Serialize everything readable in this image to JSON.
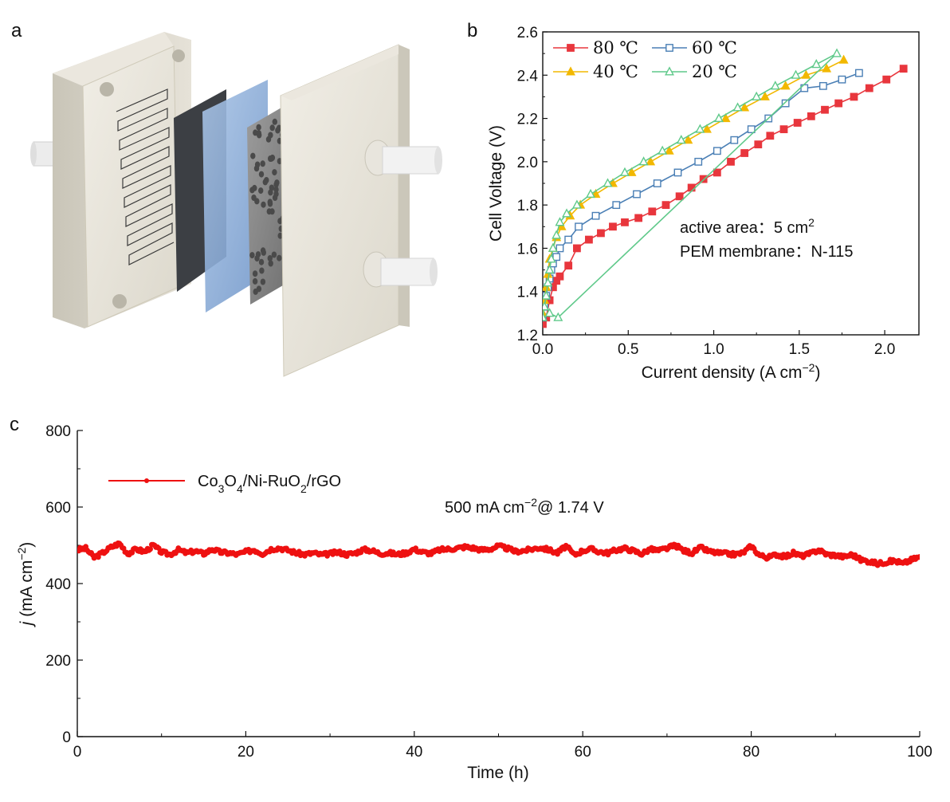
{
  "panels": {
    "a_label": "a",
    "b_label": "b",
    "c_label": "c"
  },
  "image_a": {
    "description_name": "pem-electrolyzer-cell-exploded-view"
  },
  "chart_data": [
    {
      "type": "line",
      "xlabel": "Current density (A cm",
      "xlabel_sup": "−2",
      "xlabel_end": ")",
      "ylabel": "Cell Voltage (V)",
      "xlim": [
        0.0,
        2.2
      ],
      "ylim": [
        1.2,
        2.6
      ],
      "xticks": [
        0.0,
        0.5,
        1.0,
        1.5,
        2.0
      ],
      "xtick_labels": [
        "0.0",
        "0.5",
        "1.0",
        "1.5",
        "2.0"
      ],
      "yticks": [
        1.2,
        1.4,
        1.6,
        1.8,
        2.0,
        2.2,
        2.4,
        2.6
      ],
      "ytick_labels": [
        "1.2",
        "1.4",
        "1.6",
        "1.8",
        "2.0",
        "2.2",
        "2.4",
        "2.6"
      ],
      "legend_position": "top-left",
      "annotations": {
        "line1_prefix": "active area：5 cm",
        "line1_sup": "2",
        "line2": "PEM membrane：N-115"
      },
      "series": [
        {
          "name": "80 ℃",
          "color": "#e8363d",
          "marker": "square-filled",
          "x": [
            0.0,
            0.02,
            0.04,
            0.06,
            0.08,
            0.1,
            0.15,
            0.2,
            0.27,
            0.34,
            0.41,
            0.48,
            0.56,
            0.64,
            0.72,
            0.8,
            0.87,
            0.94,
            1.02,
            1.1,
            1.18,
            1.26,
            1.33,
            1.41,
            1.49,
            1.57,
            1.65,
            1.73,
            1.82,
            1.91,
            2.01,
            2.11
          ],
          "y": [
            1.25,
            1.28,
            1.36,
            1.42,
            1.45,
            1.47,
            1.52,
            1.6,
            1.64,
            1.67,
            1.7,
            1.72,
            1.74,
            1.77,
            1.8,
            1.84,
            1.88,
            1.92,
            1.95,
            2.0,
            2.04,
            2.08,
            2.12,
            2.15,
            2.18,
            2.21,
            2.24,
            2.27,
            2.3,
            2.34,
            2.38,
            2.43
          ]
        },
        {
          "name": "60 ℃",
          "color": "#4a7fb5",
          "marker": "square-open",
          "x": [
            0.0,
            0.01,
            0.02,
            0.03,
            0.04,
            0.05,
            0.06,
            0.08,
            0.1,
            0.15,
            0.21,
            0.31,
            0.43,
            0.55,
            0.67,
            0.79,
            0.91,
            1.02,
            1.12,
            1.22,
            1.32,
            1.42,
            1.53,
            1.64,
            1.75,
            1.85
          ],
          "y": [
            1.28,
            1.33,
            1.38,
            1.42,
            1.46,
            1.5,
            1.53,
            1.56,
            1.6,
            1.64,
            1.7,
            1.75,
            1.8,
            1.85,
            1.9,
            1.95,
            2.0,
            2.05,
            2.1,
            2.15,
            2.2,
            2.27,
            2.34,
            2.35,
            2.38,
            2.41
          ]
        },
        {
          "name": "40 ℃",
          "color": "#f2b800",
          "marker": "triangle-filled",
          "x": [
            0.0,
            0.01,
            0.02,
            0.03,
            0.04,
            0.06,
            0.08,
            0.11,
            0.16,
            0.22,
            0.31,
            0.41,
            0.52,
            0.63,
            0.74,
            0.85,
            0.96,
            1.07,
            1.18,
            1.3,
            1.42,
            1.54,
            1.66,
            1.76
          ],
          "y": [
            1.3,
            1.36,
            1.42,
            1.48,
            1.55,
            1.6,
            1.65,
            1.7,
            1.75,
            1.8,
            1.85,
            1.9,
            1.95,
            2.0,
            2.05,
            2.1,
            2.15,
            2.2,
            2.25,
            2.3,
            2.35,
            2.4,
            2.43,
            2.47
          ]
        },
        {
          "name": "20 ℃",
          "color": "#5fc98a",
          "marker": "triangle-open",
          "x": [
            0.0,
            0.01,
            0.02,
            0.03,
            0.04,
            0.05,
            0.06,
            0.08,
            0.1,
            0.14,
            0.2,
            0.28,
            0.38,
            0.48,
            0.59,
            0.7,
            0.81,
            0.92,
            1.03,
            1.14,
            1.25,
            1.36,
            1.48,
            1.6,
            1.72,
            0.09,
            0.04
          ],
          "y": [
            1.28,
            1.33,
            1.38,
            1.44,
            1.5,
            1.55,
            1.6,
            1.66,
            1.72,
            1.76,
            1.8,
            1.85,
            1.9,
            1.95,
            2.0,
            2.05,
            2.1,
            2.15,
            2.2,
            2.25,
            2.3,
            2.35,
            2.4,
            2.45,
            2.5,
            1.28,
            1.3
          ]
        }
      ]
    },
    {
      "type": "line",
      "xlabel": "Time (h)",
      "ylabel_italic": "j",
      "ylabel_rest": " (mA cm",
      "ylabel_sup": "−2",
      "ylabel_end": ")",
      "xlim": [
        0,
        100
      ],
      "ylim": [
        0,
        800
      ],
      "xticks": [
        0,
        20,
        40,
        60,
        80,
        100
      ],
      "xtick_labels": [
        "0",
        "20",
        "40",
        "60",
        "80",
        "100"
      ],
      "yticks": [
        0,
        200,
        400,
        600,
        800
      ],
      "ytick_labels": [
        "0",
        "200",
        "400",
        "600",
        "800"
      ],
      "legend_position": "top-left",
      "legend": {
        "parts": [
          "Co",
          "3",
          "O",
          "4",
          "/Ni-RuO",
          "2",
          "/rGO"
        ]
      },
      "annotation": {
        "prefix": "500 mA cm",
        "sup": "−2",
        "suffix": "@  1.74 V"
      },
      "series": [
        {
          "name": "Co3O4/Ni-RuO2/rGO",
          "color": "#ee1111",
          "t": [
            0,
            1,
            2,
            3,
            4,
            5,
            6,
            7,
            8,
            9,
            10,
            11,
            12,
            13,
            14,
            15,
            16,
            17,
            18,
            19,
            20,
            21,
            22,
            23,
            24,
            25,
            26,
            27,
            28,
            29,
            30,
            31,
            32,
            33,
            34,
            35,
            36,
            37,
            38,
            39,
            40,
            41,
            42,
            43,
            44,
            45,
            46,
            47,
            48,
            49,
            50,
            51,
            52,
            53,
            54,
            55,
            56,
            57,
            58,
            59,
            60,
            61,
            62,
            63,
            64,
            65,
            66,
            67,
            68,
            69,
            70,
            71,
            72,
            73,
            74,
            75,
            76,
            77,
            78,
            79,
            80,
            81,
            82,
            83,
            84,
            85,
            86,
            87,
            88,
            89,
            90,
            91,
            92,
            93,
            94,
            95,
            96,
            97,
            98,
            99,
            100
          ],
          "j": [
            488,
            492,
            468,
            480,
            495,
            505,
            478,
            490,
            483,
            500,
            482,
            476,
            488,
            480,
            485,
            478,
            490,
            482,
            480,
            476,
            483,
            488,
            478,
            490,
            493,
            487,
            480,
            476,
            480,
            475,
            478,
            482,
            476,
            480,
            489,
            486,
            478,
            480,
            476,
            480,
            490,
            482,
            479,
            488,
            490,
            492,
            496,
            493,
            488,
            490,
            498,
            492,
            484,
            486,
            490,
            494,
            488,
            480,
            498,
            475,
            486,
            490,
            483,
            480,
            488,
            492,
            486,
            478,
            490,
            486,
            492,
            500,
            486,
            480,
            494,
            484,
            480,
            478,
            476,
            480,
            498,
            474,
            468,
            476,
            470,
            480,
            472,
            478,
            488,
            476,
            474,
            470,
            476,
            462,
            458,
            452,
            456,
            460,
            452,
            462,
            470
          ]
        }
      ]
    }
  ]
}
